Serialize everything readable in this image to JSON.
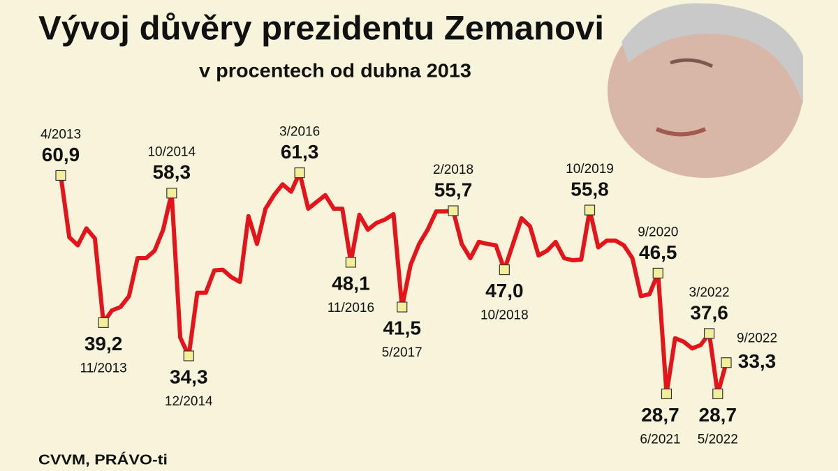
{
  "chart_data": {
    "type": "line",
    "title": "Vývoj důvěry prezidentu Zemanovi",
    "subtitle": "v procentech od dubna 2013",
    "source": "CVVM, PRÁVO-ti",
    "color": "#e3151a",
    "marker_color": "#f3ee9c",
    "ylim": [
      20,
      70
    ],
    "categories": [
      "4/2013",
      null,
      null,
      null,
      null,
      "11/2013",
      null,
      null,
      null,
      null,
      null,
      null,
      null,
      "10/2014",
      null,
      "12/2014",
      null,
      null,
      null,
      null,
      null,
      null,
      null,
      null,
      null,
      null,
      null,
      null,
      "3/2016",
      null,
      null,
      null,
      null,
      null,
      "11/2016",
      null,
      null,
      null,
      null,
      null,
      "5/2017",
      null,
      null,
      null,
      null,
      null,
      "2/2018",
      null,
      null,
      null,
      null,
      null,
      "10/2018",
      null,
      null,
      null,
      null,
      null,
      null,
      null,
      null,
      null,
      "10/2019",
      null,
      null,
      null,
      null,
      null,
      null,
      null,
      "9/2020",
      "6/2021",
      null,
      null,
      null,
      null,
      "3/2022",
      "5/2022",
      "9/2022"
    ],
    "values": [
      60.9,
      51.8,
      50.6,
      53.1,
      51.6,
      39.2,
      41.0,
      41.5,
      43.1,
      48.7,
      48.7,
      49.8,
      52.9,
      58.3,
      37.0,
      34.3,
      43.6,
      43.6,
      46.9,
      47.0,
      45.9,
      45.2,
      54.9,
      50.8,
      56.0,
      58.0,
      59.6,
      58.5,
      61.3,
      56.0,
      57.0,
      58.0,
      56.0,
      56.0,
      48.1,
      55.1,
      52.9,
      53.9,
      54.4,
      55.2,
      41.5,
      47.7,
      50.8,
      52.9,
      55.6,
      55.6,
      55.7,
      50.8,
      48.7,
      51.1,
      50.8,
      50.6,
      47.0,
      50.8,
      54.6,
      53.4,
      49.1,
      49.8,
      51.1,
      48.7,
      48.4,
      48.5,
      55.8,
      50.3,
      51.3,
      51.3,
      50.6,
      48.7,
      43.1,
      43.4,
      46.5,
      28.7,
      36.9,
      36.4,
      35.4,
      35.9,
      37.6,
      28.7,
      33.3
    ],
    "value_labels": [
      "60,9",
      null,
      null,
      null,
      null,
      "39,2",
      null,
      null,
      null,
      null,
      null,
      null,
      null,
      "58,3",
      null,
      "34,3",
      null,
      null,
      null,
      null,
      null,
      null,
      null,
      null,
      null,
      null,
      null,
      null,
      "61,3",
      null,
      null,
      null,
      null,
      null,
      "48,1",
      null,
      null,
      null,
      null,
      null,
      "41,5",
      null,
      null,
      null,
      null,
      null,
      "55,7",
      null,
      null,
      null,
      null,
      null,
      "47,0",
      null,
      null,
      null,
      null,
      null,
      null,
      null,
      null,
      null,
      "55,8",
      null,
      null,
      null,
      null,
      null,
      null,
      null,
      "46,5",
      "28,7",
      null,
      null,
      null,
      null,
      "37,6",
      "28,7",
      "33,3"
    ]
  }
}
